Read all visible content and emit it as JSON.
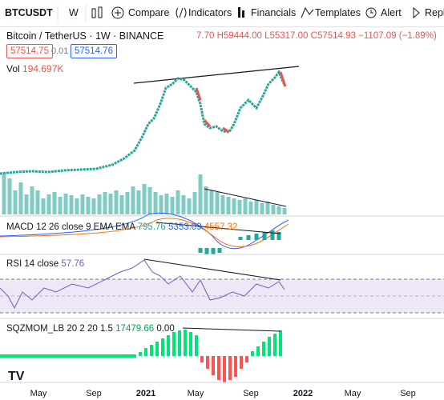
{
  "toolbar": {
    "symbol": "BTCUSDT",
    "interval": "W",
    "buttons": [
      "Compare",
      "Indicators",
      "Financials",
      "Templates",
      "Alert",
      "Repl"
    ]
  },
  "legend": {
    "pair": "Bitcoin / TetherUS",
    "timeframe": "1W",
    "exchange": "BINANCE",
    "ohlc": [
      "7.70",
      "H59444.00",
      "L55317.00",
      "C57514.93",
      "−1107.09 (−1.89%)"
    ]
  },
  "price_boxes": [
    "57514.75",
    "0.01",
    "57514.76"
  ],
  "volume": {
    "label": "Vol",
    "value": "194.697K"
  },
  "macd": {
    "label": "MACD 12 26 close 9 EMA EMA",
    "values": [
      "795.76",
      "5353.09",
      "4557.32"
    ]
  },
  "rsi": {
    "label": "RSI 14 close",
    "value": "57.76"
  },
  "sqzmom": {
    "label": "SQZMOM_LB 20 2 20 1.5",
    "values": [
      "17479.66",
      "0.00"
    ]
  },
  "x_axis": [
    "May",
    "Sep",
    "2021",
    "May",
    "Sep",
    "2022",
    "May",
    "Sep"
  ]
}
